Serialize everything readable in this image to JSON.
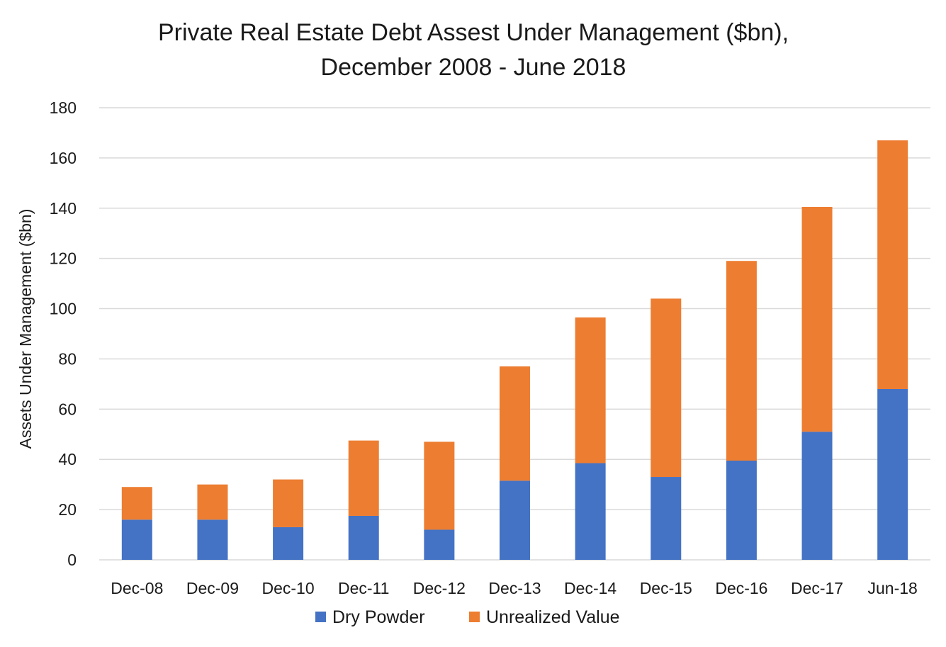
{
  "chart_data": {
    "type": "bar",
    "stacked": true,
    "title": "Private Real Estate Debt Assest Under Management ($bn),",
    "subtitle": "December 2008 - June 2018",
    "xlabel": "",
    "ylabel": "Assets Under Management ($bn)",
    "ylim": [
      0,
      180
    ],
    "yticks": [
      0,
      20,
      40,
      60,
      80,
      100,
      120,
      140,
      160,
      180
    ],
    "grid": true,
    "legend_position": "bottom",
    "categories": [
      "Dec-08",
      "Dec-09",
      "Dec-10",
      "Dec-11",
      "Dec-12",
      "Dec-13",
      "Dec-14",
      "Dec-15",
      "Dec-16",
      "Dec-17",
      "Jun-18"
    ],
    "series": [
      {
        "name": "Dry Powder",
        "color": "#4472c4",
        "values": [
          16,
          16,
          13,
          17.5,
          12,
          31.5,
          38.5,
          33,
          39.5,
          51,
          68
        ]
      },
      {
        "name": "Unrealized Value",
        "color": "#ed7d31",
        "values": [
          13,
          14,
          19,
          30,
          35,
          45.5,
          58,
          71,
          79.5,
          89.5,
          99
        ]
      }
    ]
  }
}
